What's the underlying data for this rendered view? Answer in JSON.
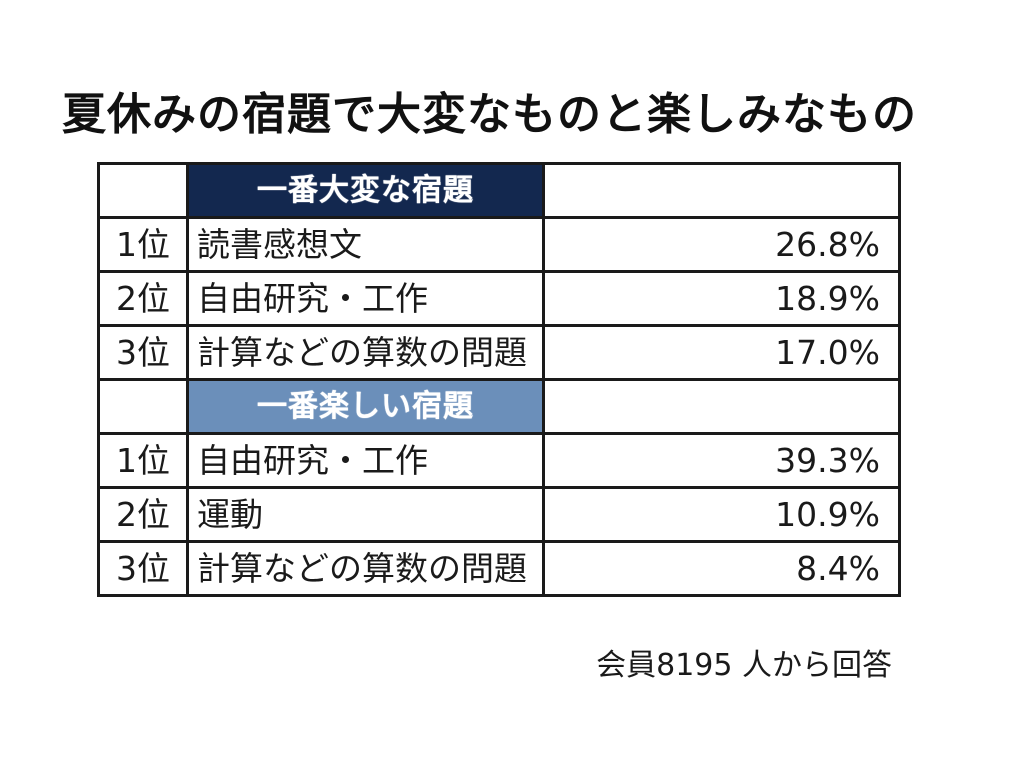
{
  "title": "夏休みの宿題で大変なものと楽しみなもの",
  "chart_data": {
    "type": "table",
    "sections": [
      {
        "title": "一番大変な宿題",
        "color": "#13284f",
        "rows": [
          {
            "rank": "1位",
            "item": "読書感想文",
            "value": "26.8%"
          },
          {
            "rank": "2位",
            "item": "自由研究・工作",
            "value": "18.9%"
          },
          {
            "rank": "3位",
            "item": "計算などの算数の問題",
            "value": "17.0%"
          }
        ]
      },
      {
        "title": "一番楽しい宿題",
        "color": "#6b8fba",
        "rows": [
          {
            "rank": "1位",
            "item": "自由研究・工作",
            "value": "39.3%"
          },
          {
            "rank": "2位",
            "item": "運動",
            "value": "10.9%"
          },
          {
            "rank": "3位",
            "item": "計算などの算数の問題",
            "value": "8.4%"
          }
        ]
      }
    ]
  },
  "footnote": "会員8195 人から回答"
}
